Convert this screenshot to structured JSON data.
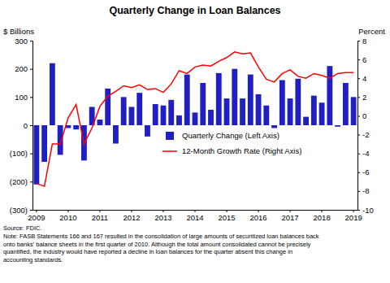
{
  "chart_data": {
    "type": "bar",
    "title": "Quarterly Change in Loan Balances",
    "y_label": "$ Billions",
    "y2_label": "Percent",
    "source": "Source: FDIC.",
    "note": [
      "Note: FASB Statements 166 and 167 resulted in the consolidation of large amounts of securitized loan balances back",
      "onto banks' balance sheets in the first quarter of 2010.  Although the total amount consolidated cannot be precisely",
      "quantified, the industry would have reported a decline in loan balances for the quarter absent this change in",
      "accounting standards."
    ],
    "categories": [
      "2009",
      null,
      null,
      null,
      "2010",
      null,
      null,
      null,
      "2011",
      null,
      null,
      null,
      "2012",
      null,
      null,
      null,
      "2013",
      null,
      null,
      null,
      "2014",
      null,
      null,
      null,
      "2015",
      null,
      null,
      null,
      "2016",
      null,
      null,
      null,
      "2017",
      null,
      null,
      null,
      "2018",
      null,
      null,
      null,
      "2019"
    ],
    "series": [
      {
        "name": "Quarterly Change (Left Axis)",
        "type": "bar",
        "color": "#1f1fc4",
        "values": [
          -210,
          -130,
          220,
          -105,
          -10,
          -15,
          -125,
          65,
          20,
          130,
          -65,
          100,
          65,
          115,
          -40,
          75,
          70,
          90,
          35,
          180,
          45,
          150,
          55,
          185,
          95,
          200,
          95,
          180,
          110,
          70,
          -10,
          160,
          95,
          165,
          30,
          105,
          80,
          210,
          -5,
          150,
          100
        ]
      },
      {
        "name": "12-Month Growth Rate (Right Axis)",
        "type": "line",
        "axis": "y2",
        "color": "#ff0000",
        "values": [
          -7.2,
          -7.5,
          -3.0,
          -3.0,
          -0.2,
          1.2,
          -3.0,
          -1.3,
          1.0,
          2.1,
          2.6,
          3.2,
          3.0,
          3.3,
          2.8,
          2.9,
          2.5,
          3.4,
          4.8,
          4.5,
          5.2,
          5.4,
          5.3,
          5.8,
          6.2,
          6.8,
          6.6,
          6.7,
          5.2,
          3.9,
          3.6,
          4.5,
          4.9,
          4.2,
          4.0,
          4.5,
          4.3,
          4.0,
          4.5,
          4.6,
          4.6
        ]
      }
    ],
    "ylim": [
      -300,
      300
    ],
    "yticks": [
      {
        "value": -300,
        "label": "(300)"
      },
      {
        "value": -200,
        "label": "(200)"
      },
      {
        "value": -100,
        "label": "(100)"
      },
      0,
      100,
      200,
      300
    ],
    "y2lim": [
      -10,
      8
    ],
    "y2ticks": [
      -10,
      -8,
      -6,
      -4,
      -2,
      0,
      2,
      4,
      6,
      8
    ],
    "legend": "right",
    "grid": false
  }
}
